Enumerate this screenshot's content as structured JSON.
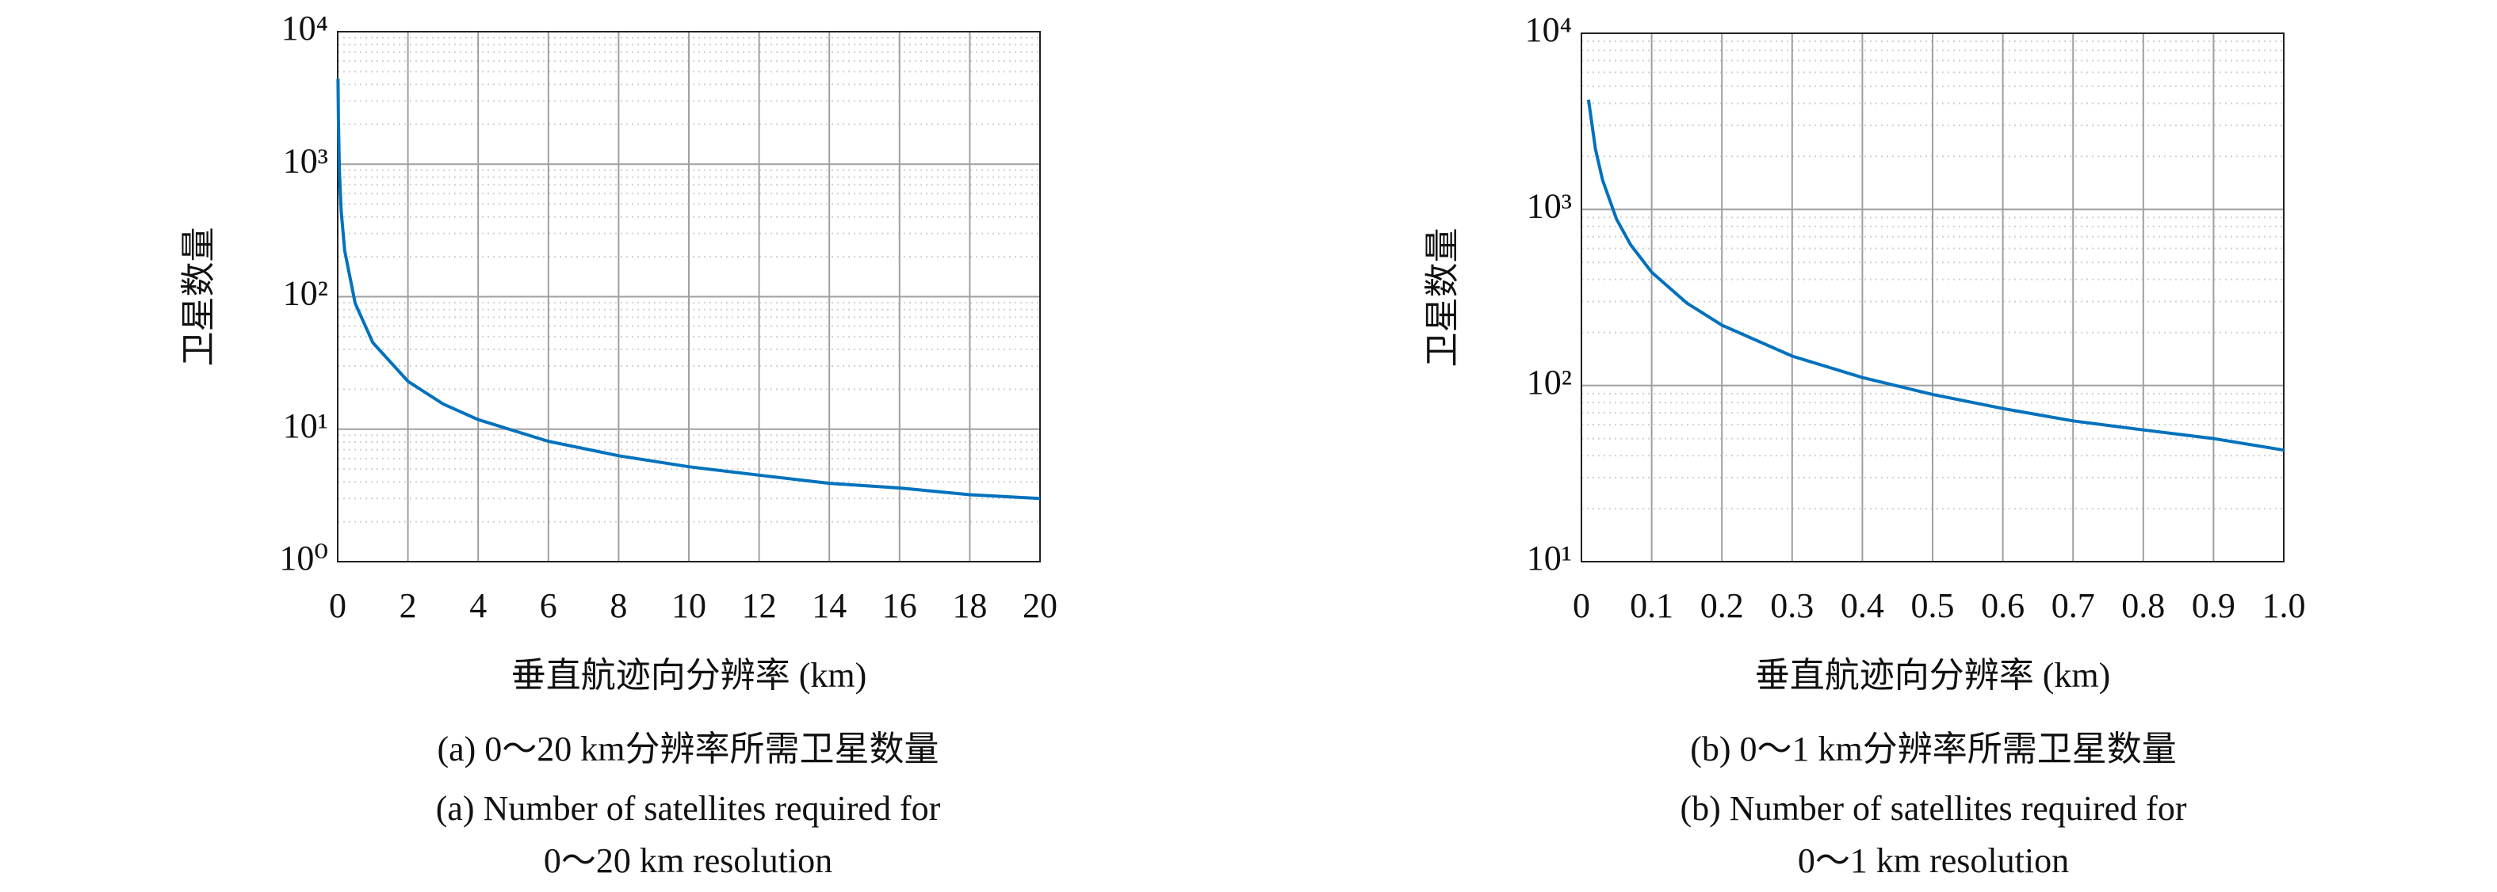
{
  "chart_data": [
    {
      "type": "line",
      "x_label": "垂直航迹向分辨率 (km)",
      "y_label": "卫星数量",
      "x": [
        0.01,
        0.02,
        0.05,
        0.1,
        0.2,
        0.5,
        1,
        2,
        3,
        4,
        6,
        8,
        10,
        12,
        14,
        16,
        18,
        20
      ],
      "values": [
        4401,
        2201,
        881,
        441,
        221,
        89,
        45,
        23,
        15.5,
        11.8,
        8.1,
        6.3,
        5.2,
        4.5,
        3.9,
        3.6,
        3.2,
        3.0
      ],
      "color": "#0072bd",
      "log_y": true,
      "grid": true,
      "minor_grid": true,
      "xlim": [
        0,
        20
      ],
      "xticks": [
        0,
        2,
        4,
        6,
        8,
        10,
        12,
        14,
        16,
        18,
        20
      ],
      "ylim": [
        1,
        10000
      ],
      "yticks": [
        {
          "value": 1,
          "label": "10⁰"
        },
        {
          "value": 10,
          "label": "10¹"
        },
        {
          "value": 100,
          "label": "10²"
        },
        {
          "value": 1000,
          "label": "10³"
        },
        {
          "value": 10000,
          "label": "10⁴"
        }
      ],
      "caption": [
        "(a) 0～20 km分辨率所需卫星数量",
        "(a) Number of satellites required for",
        "0～20 km resolution"
      ]
    },
    {
      "type": "line",
      "x_label": "垂直航迹向分辨率 (km)",
      "y_label": "卫星数量",
      "x": [
        0.01,
        0.02,
        0.03,
        0.05,
        0.07,
        0.1,
        0.15,
        0.2,
        0.3,
        0.4,
        0.5,
        0.6,
        0.7,
        0.8,
        0.9,
        1.0
      ],
      "values": [
        4200,
        2200,
        1470,
        880,
        630,
        440,
        294,
        220,
        147,
        111,
        89,
        74,
        63,
        56,
        50,
        43
      ],
      "color": "#0072bd",
      "log_y": true,
      "grid": true,
      "minor_grid": true,
      "xlim": [
        0,
        1
      ],
      "xticks": [
        0,
        0.1,
        0.2,
        0.3,
        0.4,
        0.5,
        0.6,
        0.7,
        0.8,
        0.9,
        {
          "value": 1,
          "label": "1.0"
        }
      ],
      "ylim": [
        10,
        10000
      ],
      "yticks": [
        {
          "value": 10,
          "label": "10¹"
        },
        {
          "value": 100,
          "label": "10²"
        },
        {
          "value": 1000,
          "label": "10³"
        },
        {
          "value": 10000,
          "label": "10⁴"
        }
      ],
      "caption": [
        "(b) 0～1 km分辨率所需卫星数量",
        "(b) Number of satellites required for",
        "0～1 km resolution"
      ]
    }
  ]
}
